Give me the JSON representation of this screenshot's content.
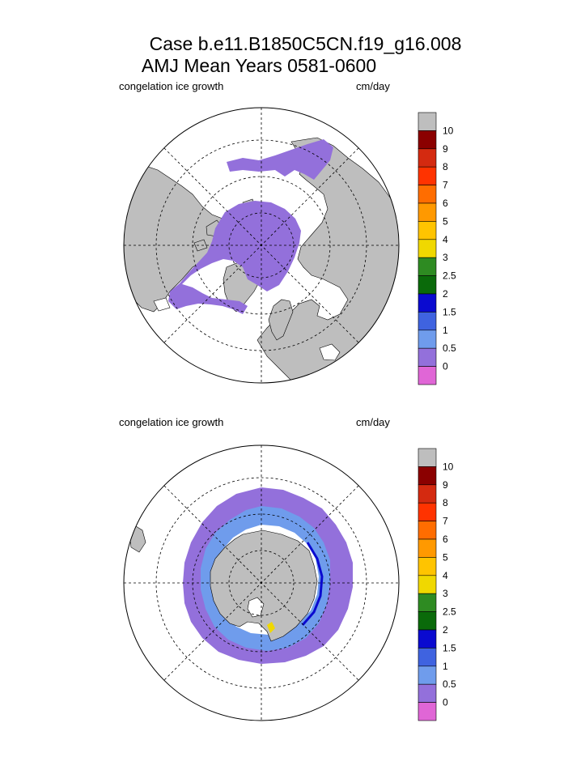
{
  "title": {
    "line1": "Case b.e11.B1850C5CN.f19_g16.008",
    "line2": "AMJ Mean    Years 0581-0600"
  },
  "colors": {
    "land": "#bebebe",
    "ice_low": "#9370db",
    "ocean": "#ffffff",
    "grid": "#000000"
  },
  "panels": [
    {
      "hemisphere": "north",
      "variable_label": "congelation ice growth",
      "units_label": "cm/day"
    },
    {
      "hemisphere": "south",
      "variable_label": "congelation ice growth",
      "units_label": "cm/day"
    }
  ],
  "chart_data": {
    "type": "heatmap",
    "projection": "polar stereographic",
    "variable": "congelation ice growth",
    "units": "cm/day",
    "colorbar": {
      "levels": [
        "0",
        "0.5",
        "1",
        "1.5",
        "2",
        "2.5",
        "3",
        "4",
        "5",
        "6",
        "7",
        "8",
        "9",
        "10"
      ],
      "colors": [
        "#e066d6",
        "#9370db",
        "#6f9cec",
        "#3f63e0",
        "#0a0ad0",
        "#0a6a0a",
        "#2e8b22",
        "#f0d800",
        "#ffc400",
        "#ff9900",
        "#ff6d00",
        "#ff3300",
        "#d42a10",
        "#8b0000",
        "#bebebe"
      ]
    },
    "north": {
      "dominant_range": "0.5 to 1 cm/day over Arctic basin",
      "max_range": "0.5-1"
    },
    "south": {
      "dominant_range": "0.5 to 1 cm/day outer ring, 1 to 1.5 near Antarctic coast",
      "max_range": "up to 3-4 near Antarctic Peninsula"
    }
  }
}
